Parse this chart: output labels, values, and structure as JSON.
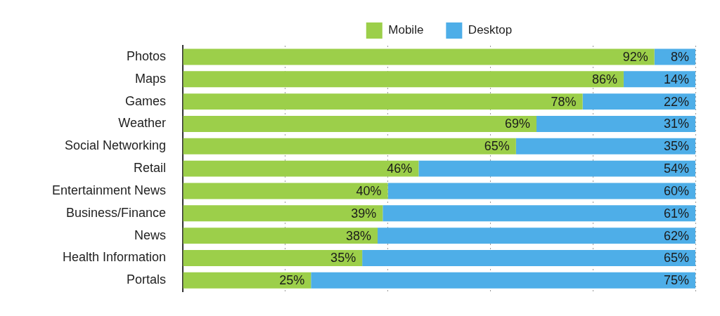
{
  "chart_data": {
    "type": "bar",
    "orientation": "horizontal",
    "stacked": true,
    "categories": [
      "Photos",
      "Maps",
      "Games",
      "Weather",
      "Social Networking",
      "Retail",
      "Entertainment News",
      "Business/Finance",
      "News",
      "Health Information",
      "Portals"
    ],
    "series": [
      {
        "name": "Mobile",
        "color": "#9ccf4a",
        "values": [
          92,
          86,
          78,
          69,
          65,
          46,
          40,
          39,
          38,
          35,
          25
        ],
        "value_labels": [
          "92%",
          "86%",
          "78%",
          "69%",
          "65%",
          "46%",
          "40%",
          "39%",
          "38%",
          "35%",
          "25%"
        ]
      },
      {
        "name": "Desktop",
        "color": "#4eaee8",
        "values": [
          8,
          14,
          22,
          31,
          35,
          54,
          60,
          61,
          62,
          65,
          75
        ],
        "value_labels": [
          "8%",
          "14%",
          "22%",
          "31%",
          "35%",
          "54%",
          "60%",
          "61%",
          "62%",
          "65%",
          "75%"
        ]
      }
    ],
    "xlim": [
      0,
      100
    ],
    "xticks": [
      0,
      20,
      40,
      60,
      80,
      100
    ],
    "grid": "x",
    "legend": "top",
    "tick_labels": "y"
  }
}
